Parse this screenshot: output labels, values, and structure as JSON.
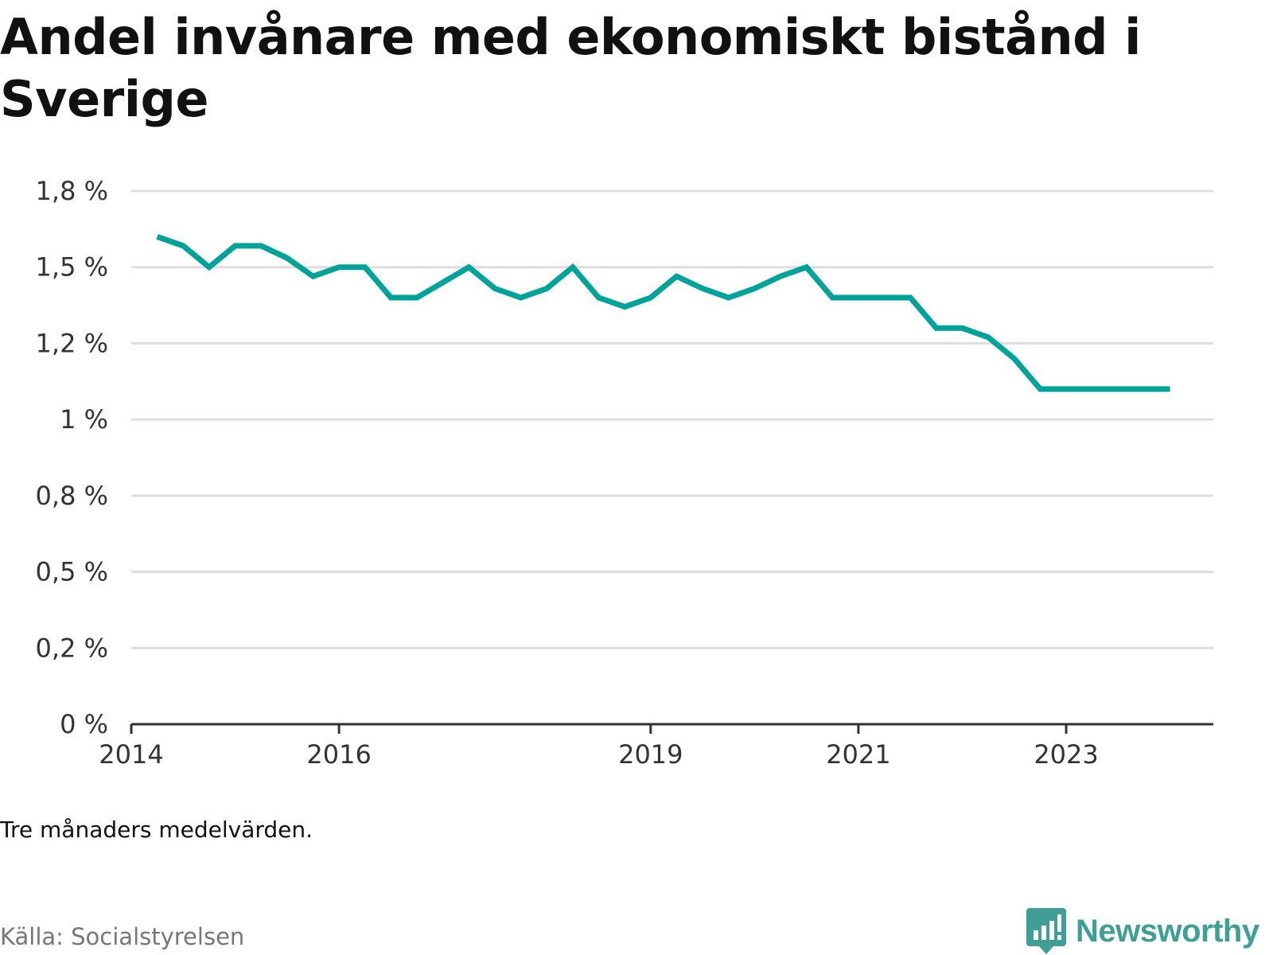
{
  "title": "Andel invånare med ekonomiskt bistånd i Sverige",
  "note": "Tre månaders medelvärden.",
  "source": "Källa: Socialstyrelsen",
  "brand": {
    "name": "Newsworthy",
    "icon": "newsworthy-logo-icon",
    "color": "#3f9e96"
  },
  "colors": {
    "line": "#00a399",
    "grid": "#dddddd",
    "axis": "#333333"
  },
  "chart_data": {
    "type": "line",
    "title": "Andel invånare med ekonomiskt bistånd i Sverige",
    "xlabel": "",
    "ylabel": "",
    "grid": true,
    "x_range": [
      "2014-01",
      "2024-06"
    ],
    "ylim": [
      0,
      1.75
    ],
    "y_ticks": [
      0,
      0.25,
      0.5,
      0.75,
      1.0,
      1.25,
      1.5,
      1.75
    ],
    "y_tick_labels": [
      "0 %",
      "0,2 %",
      "0,5 %",
      "0,8 %",
      "1 %",
      "1,2 %",
      "1,5 %",
      "1,8 %"
    ],
    "x_ticks": [
      "2014-01",
      "2016-01",
      "2019-01",
      "2021-01",
      "2023-01"
    ],
    "x_tick_labels": [
      "2014",
      "2016",
      "2019",
      "2021",
      "2023"
    ],
    "series": [
      {
        "x": [
          "2014-04",
          "2014-07",
          "2014-10",
          "2015-01",
          "2015-04",
          "2015-07",
          "2015-10",
          "2016-01",
          "2016-04",
          "2016-07",
          "2016-10",
          "2017-01",
          "2017-04",
          "2017-07",
          "2017-10",
          "2018-01",
          "2018-04",
          "2018-07",
          "2018-10",
          "2019-01",
          "2019-04",
          "2019-07",
          "2019-10",
          "2020-01",
          "2020-04",
          "2020-07",
          "2020-10",
          "2021-01",
          "2021-04",
          "2021-07",
          "2021-10",
          "2022-01",
          "2022-04",
          "2022-07",
          "2022-10",
          "2023-01",
          "2023-04",
          "2023-07",
          "2023-10",
          "2024-01"
        ],
        "values": [
          1.6,
          1.57,
          1.5,
          1.57,
          1.57,
          1.53,
          1.47,
          1.5,
          1.5,
          1.4,
          1.4,
          1.45,
          1.5,
          1.43,
          1.4,
          1.43,
          1.5,
          1.4,
          1.37,
          1.4,
          1.47,
          1.43,
          1.4,
          1.43,
          1.47,
          1.5,
          1.4,
          1.4,
          1.4,
          1.4,
          1.3,
          1.3,
          1.27,
          1.2,
          1.1,
          1.1,
          1.1,
          1.1,
          1.1,
          1.1
        ]
      }
    ]
  }
}
